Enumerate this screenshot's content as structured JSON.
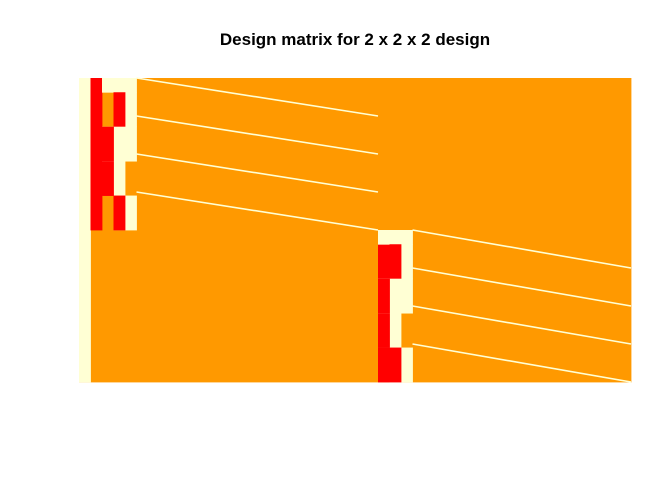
{
  "chart_data": {
    "type": "heatmap",
    "title": "Design matrix for 2 x 2 x 2 design",
    "xlabel": "",
    "ylabel": "",
    "axes_shown": false,
    "grid": false,
    "legend": "none",
    "n_rows": 8,
    "n_cols": 48,
    "colors": {
      "low": "#FFFFD4",
      "mid": "#FF0000",
      "high": "#FF9900"
    },
    "color_scale": "heat.colors (reversed): light yellow = low, red = mid, orange = high",
    "row_blocks": [
      {
        "rows": [
          1,
          4
        ],
        "constant_column": 1,
        "level_columns": [
          4,
          5,
          3,
          3,
          2
        ]
      },
      {
        "rows": [
          5,
          8
        ],
        "constant_column": 26,
        "level_columns": [
          28,
          29,
          27,
          27,
          26
        ]
      }
    ]
  }
}
